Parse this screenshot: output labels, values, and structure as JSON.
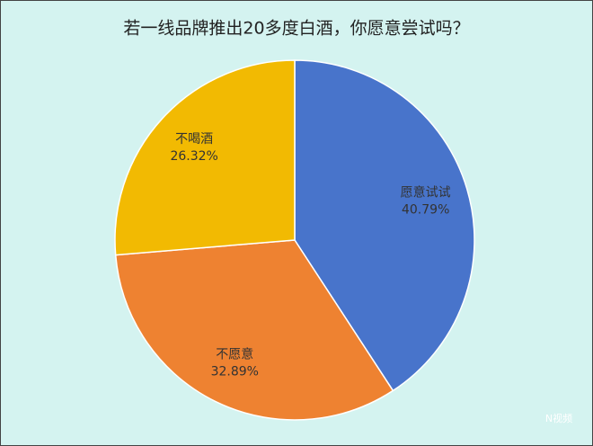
{
  "chart_data": {
    "type": "pie",
    "title": "若一线品牌推出20多度白酒，你愿意尝试吗？",
    "categories": [
      "愿意试试",
      "不愿意",
      "不喝酒"
    ],
    "values": [
      40.79,
      32.89,
      26.32
    ],
    "value_labels": [
      "40.79%",
      "32.89%",
      "26.32%"
    ],
    "colors": [
      "#4874cb",
      "#ee8231",
      "#f2ba02"
    ]
  },
  "watermark": "N视频"
}
